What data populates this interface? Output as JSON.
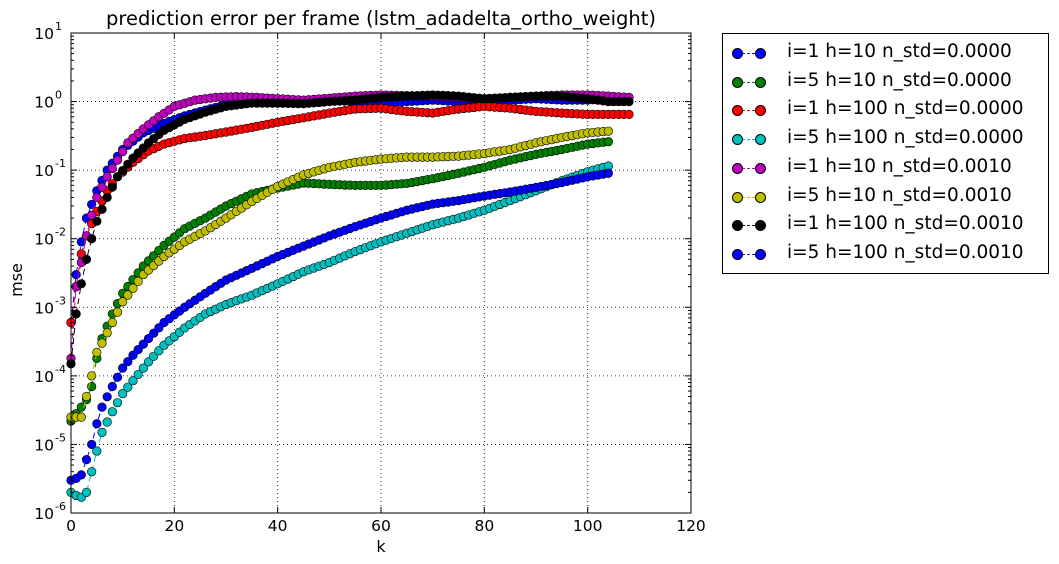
{
  "chart_data": {
    "type": "line",
    "title": "prediction error per frame (lstm_adadelta_ortho_weight)",
    "xlabel": "k",
    "ylabel": "mse",
    "xlim": [
      0,
      120
    ],
    "ylim": [
      1e-06,
      10
    ],
    "yscale": "log",
    "grid": true,
    "legend_position": "outside-right",
    "xticks": [
      "0",
      "20",
      "40",
      "60",
      "80",
      "100",
      "120"
    ],
    "yticks": [
      {
        "base": "10",
        "exp": "-6",
        "value": 1e-06
      },
      {
        "base": "10",
        "exp": "-5",
        "value": 1e-05
      },
      {
        "base": "10",
        "exp": "-4",
        "value": 0.0001
      },
      {
        "base": "10",
        "exp": "-3",
        "value": 0.001
      },
      {
        "base": "10",
        "exp": "-2",
        "value": 0.01
      },
      {
        "base": "10",
        "exp": "-1",
        "value": 0.1
      },
      {
        "base": "10",
        "exp": "0",
        "value": 1
      },
      {
        "base": "10",
        "exp": "1",
        "value": 10
      }
    ],
    "series": [
      {
        "name": "i=1 h=10 n_std=0.0000",
        "color": "#0000ff",
        "n": 105,
        "knots": [
          [
            0,
            0.0006
          ],
          [
            1,
            0.003
          ],
          [
            2,
            0.009
          ],
          [
            3,
            0.02
          ],
          [
            5,
            0.05
          ],
          [
            7,
            0.1
          ],
          [
            10,
            0.2
          ],
          [
            14,
            0.35
          ],
          [
            18,
            0.48
          ],
          [
            22,
            0.62
          ],
          [
            26,
            0.75
          ],
          [
            30,
            0.9
          ],
          [
            35,
            0.98
          ],
          [
            40,
            0.95
          ],
          [
            45,
            1.0
          ],
          [
            50,
            1.05
          ],
          [
            55,
            1.0
          ],
          [
            60,
            0.95
          ],
          [
            65,
            1.0
          ],
          [
            70,
            1.05
          ],
          [
            75,
            1.0
          ],
          [
            80,
            1.05
          ],
          [
            85,
            1.05
          ],
          [
            90,
            1.1
          ],
          [
            95,
            1.05
          ],
          [
            100,
            1.05
          ],
          [
            104,
            1.1
          ]
        ]
      },
      {
        "name": "i=5 h=10 n_std=0.0000",
        "color": "#008000",
        "n": 105,
        "knots": [
          [
            0,
            2.2e-05
          ],
          [
            1,
            2.8e-05
          ],
          [
            2,
            3.5e-05
          ],
          [
            3,
            4.5e-05
          ],
          [
            4,
            7e-05
          ],
          [
            5,
            0.00018
          ],
          [
            6,
            0.00035
          ],
          [
            8,
            0.0008
          ],
          [
            10,
            0.0016
          ],
          [
            14,
            0.004
          ],
          [
            18,
            0.008
          ],
          [
            22,
            0.014
          ],
          [
            26,
            0.02
          ],
          [
            30,
            0.03
          ],
          [
            35,
            0.045
          ],
          [
            40,
            0.055
          ],
          [
            45,
            0.065
          ],
          [
            50,
            0.062
          ],
          [
            55,
            0.06
          ],
          [
            60,
            0.06
          ],
          [
            65,
            0.064
          ],
          [
            70,
            0.075
          ],
          [
            75,
            0.09
          ],
          [
            80,
            0.11
          ],
          [
            85,
            0.14
          ],
          [
            90,
            0.17
          ],
          [
            95,
            0.2
          ],
          [
            100,
            0.24
          ],
          [
            104,
            0.26
          ]
        ]
      },
      {
        "name": "i=1 h=100 n_std=0.0000",
        "color": "#ff0000",
        "n": 109,
        "knots": [
          [
            0,
            0.0006
          ],
          [
            1,
            0.002
          ],
          [
            2,
            0.006
          ],
          [
            3,
            0.011
          ],
          [
            5,
            0.025
          ],
          [
            7,
            0.05
          ],
          [
            9,
            0.08
          ],
          [
            12,
            0.13
          ],
          [
            15,
            0.19
          ],
          [
            18,
            0.24
          ],
          [
            22,
            0.29
          ],
          [
            26,
            0.32
          ],
          [
            30,
            0.36
          ],
          [
            35,
            0.42
          ],
          [
            40,
            0.5
          ],
          [
            45,
            0.58
          ],
          [
            50,
            0.68
          ],
          [
            55,
            0.78
          ],
          [
            60,
            0.8
          ],
          [
            65,
            0.72
          ],
          [
            70,
            0.68
          ],
          [
            75,
            0.78
          ],
          [
            80,
            0.85
          ],
          [
            85,
            0.8
          ],
          [
            90,
            0.72
          ],
          [
            95,
            0.68
          ],
          [
            100,
            0.65
          ],
          [
            104,
            0.65
          ],
          [
            108,
            0.65
          ]
        ]
      },
      {
        "name": "i=5 h=100 n_std=0.0000",
        "color": "#00bfbf",
        "n": 105,
        "knots": [
          [
            0,
            2e-06
          ],
          [
            1,
            1.8e-06
          ],
          [
            2,
            1.7e-06
          ],
          [
            3,
            2e-06
          ],
          [
            4,
            4e-06
          ],
          [
            5,
            8e-06
          ],
          [
            6,
            1.5e-05
          ],
          [
            8,
            3e-05
          ],
          [
            10,
            5.5e-05
          ],
          [
            12,
            8.5e-05
          ],
          [
            15,
            0.00016
          ],
          [
            18,
            0.00028
          ],
          [
            22,
            0.0005
          ],
          [
            26,
            0.0008
          ],
          [
            30,
            0.0011
          ],
          [
            35,
            0.0015
          ],
          [
            40,
            0.0022
          ],
          [
            45,
            0.0033
          ],
          [
            50,
            0.0045
          ],
          [
            55,
            0.0065
          ],
          [
            60,
            0.009
          ],
          [
            65,
            0.012
          ],
          [
            70,
            0.016
          ],
          [
            75,
            0.02
          ],
          [
            80,
            0.026
          ],
          [
            85,
            0.036
          ],
          [
            90,
            0.05
          ],
          [
            95,
            0.07
          ],
          [
            100,
            0.095
          ],
          [
            104,
            0.115
          ]
        ]
      },
      {
        "name": "i=1 h=10 n_std=0.0010",
        "color": "#bf00bf",
        "n": 109,
        "knots": [
          [
            0,
            0.00018
          ],
          [
            1,
            0.002
          ],
          [
            2,
            0.0045
          ],
          [
            3,
            0.011
          ],
          [
            4,
            0.022
          ],
          [
            5,
            0.04
          ],
          [
            7,
            0.08
          ],
          [
            9,
            0.14
          ],
          [
            11,
            0.25
          ],
          [
            14,
            0.4
          ],
          [
            17,
            0.6
          ],
          [
            20,
            0.85
          ],
          [
            24,
            1.05
          ],
          [
            28,
            1.15
          ],
          [
            32,
            1.18
          ],
          [
            36,
            1.15
          ],
          [
            40,
            1.1
          ],
          [
            45,
            1.05
          ],
          [
            50,
            1.12
          ],
          [
            55,
            1.2
          ],
          [
            60,
            1.25
          ],
          [
            65,
            1.22
          ],
          [
            70,
            1.2
          ],
          [
            75,
            1.15
          ],
          [
            80,
            1.1
          ],
          [
            85,
            1.15
          ],
          [
            90,
            1.2
          ],
          [
            95,
            1.25
          ],
          [
            100,
            1.25
          ],
          [
            104,
            1.2
          ],
          [
            108,
            1.15
          ]
        ]
      },
      {
        "name": "i=5 h=10 n_std=0.0010",
        "color": "#bfbf00",
        "n": 105,
        "knots": [
          [
            0,
            2.5e-05
          ],
          [
            1,
            2.5e-05
          ],
          [
            2,
            2.5e-05
          ],
          [
            3,
            5e-05
          ],
          [
            4,
            0.0001
          ],
          [
            5,
            0.00022
          ],
          [
            6,
            0.0003
          ],
          [
            8,
            0.0006
          ],
          [
            10,
            0.0012
          ],
          [
            14,
            0.003
          ],
          [
            18,
            0.0055
          ],
          [
            22,
            0.009
          ],
          [
            26,
            0.013
          ],
          [
            30,
            0.02
          ],
          [
            35,
            0.035
          ],
          [
            40,
            0.058
          ],
          [
            45,
            0.085
          ],
          [
            50,
            0.11
          ],
          [
            55,
            0.13
          ],
          [
            60,
            0.145
          ],
          [
            65,
            0.155
          ],
          [
            70,
            0.155
          ],
          [
            75,
            0.16
          ],
          [
            80,
            0.175
          ],
          [
            85,
            0.2
          ],
          [
            90,
            0.25
          ],
          [
            95,
            0.3
          ],
          [
            100,
            0.35
          ],
          [
            104,
            0.37
          ]
        ]
      },
      {
        "name": "i=1 h=100 n_std=0.0010",
        "color": "#000000",
        "n": 109,
        "knots": [
          [
            0,
            0.00015
          ],
          [
            1,
            0.0008
          ],
          [
            2,
            0.0022
          ],
          [
            3,
            0.005
          ],
          [
            4,
            0.01
          ],
          [
            5,
            0.018
          ],
          [
            7,
            0.04
          ],
          [
            9,
            0.08
          ],
          [
            12,
            0.15
          ],
          [
            15,
            0.25
          ],
          [
            18,
            0.38
          ],
          [
            22,
            0.55
          ],
          [
            26,
            0.7
          ],
          [
            30,
            0.85
          ],
          [
            35,
            0.95
          ],
          [
            40,
            0.95
          ],
          [
            45,
            0.93
          ],
          [
            50,
            1.0
          ],
          [
            55,
            1.05
          ],
          [
            60,
            1.15
          ],
          [
            65,
            1.2
          ],
          [
            70,
            1.25
          ],
          [
            75,
            1.2
          ],
          [
            80,
            1.1
          ],
          [
            85,
            1.15
          ],
          [
            90,
            1.2
          ],
          [
            95,
            1.2
          ],
          [
            100,
            1.1
          ],
          [
            104,
            1.0
          ],
          [
            108,
            1.0
          ]
        ]
      },
      {
        "name": "i=5 h=100 n_std=0.0010",
        "color": "#0000ff",
        "n": 105,
        "knots": [
          [
            0,
            3e-06
          ],
          [
            1,
            3.2e-06
          ],
          [
            2,
            3.6e-06
          ],
          [
            3,
            6e-06
          ],
          [
            4,
            1e-05
          ],
          [
            5,
            2e-05
          ],
          [
            6,
            3.5e-05
          ],
          [
            8,
            7e-05
          ],
          [
            10,
            0.00013
          ],
          [
            12,
            0.0002
          ],
          [
            15,
            0.00035
          ],
          [
            18,
            0.0006
          ],
          [
            22,
            0.001
          ],
          [
            26,
            0.0016
          ],
          [
            30,
            0.0025
          ],
          [
            35,
            0.0037
          ],
          [
            40,
            0.0055
          ],
          [
            45,
            0.0078
          ],
          [
            50,
            0.011
          ],
          [
            55,
            0.015
          ],
          [
            60,
            0.02
          ],
          [
            65,
            0.026
          ],
          [
            70,
            0.032
          ],
          [
            75,
            0.036
          ],
          [
            80,
            0.042
          ],
          [
            85,
            0.048
          ],
          [
            90,
            0.056
          ],
          [
            95,
            0.066
          ],
          [
            100,
            0.08
          ],
          [
            104,
            0.09
          ]
        ]
      }
    ]
  }
}
